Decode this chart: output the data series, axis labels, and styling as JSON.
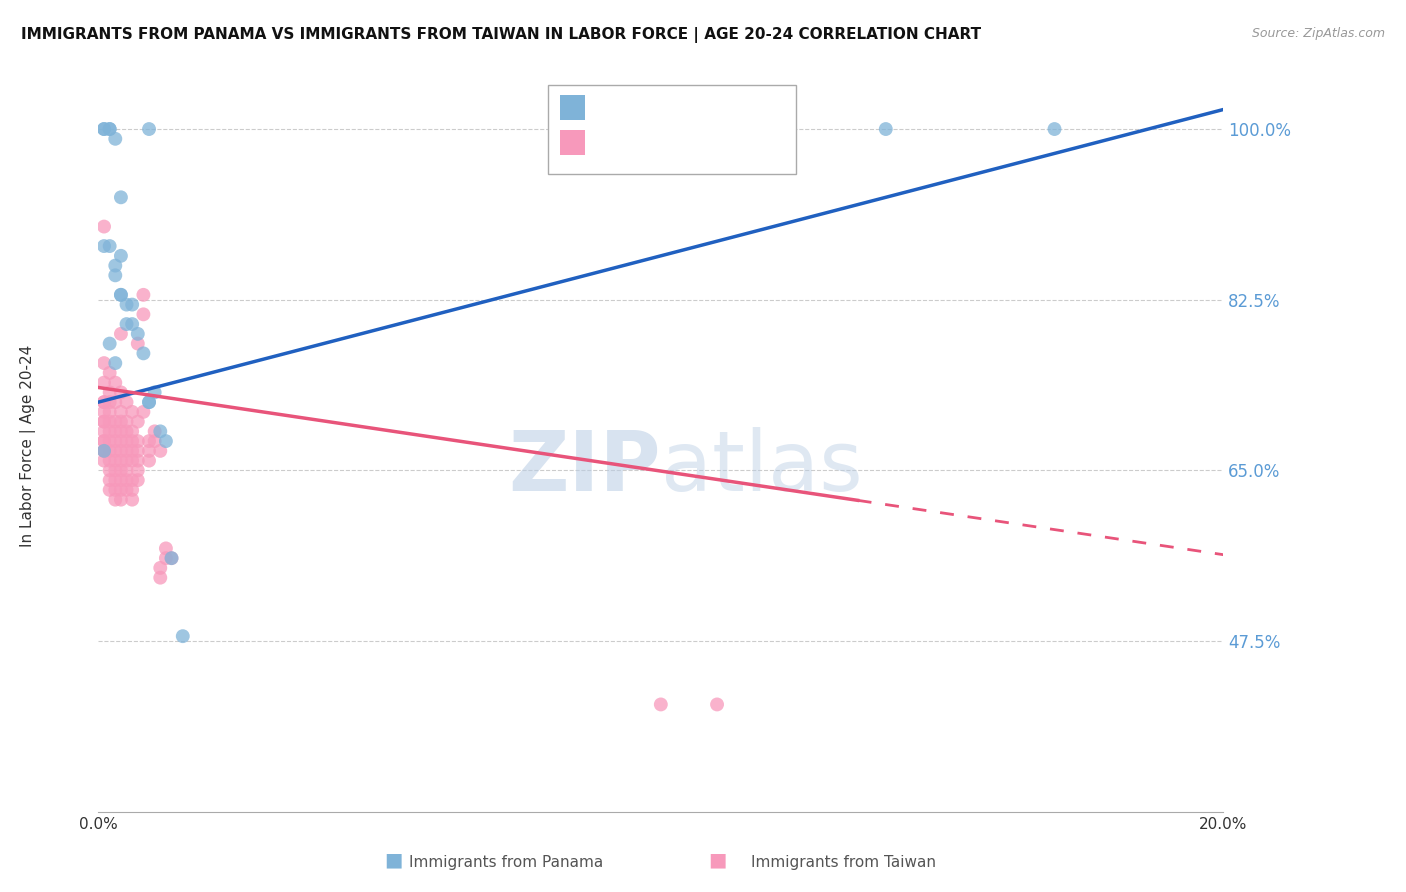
{
  "title": "IMMIGRANTS FROM PANAMA VS IMMIGRANTS FROM TAIWAN IN LABOR FORCE | AGE 20-24 CORRELATION CHART",
  "source": "Source: ZipAtlas.com",
  "ylabel": "In Labor Force | Age 20-24",
  "ytick_labels": [
    "100.0%",
    "82.5%",
    "65.0%",
    "47.5%"
  ],
  "ytick_values": [
    1.0,
    0.825,
    0.65,
    0.475
  ],
  "xmin": 0.0,
  "xmax": 0.2,
  "ymin": 0.3,
  "ymax": 1.05,
  "legend_label_panama": "Immigrants from Panama",
  "legend_label_taiwan": "Immigrants from Taiwan",
  "color_panama": "#7fb3d8",
  "color_taiwan": "#f799bb",
  "color_line_panama": "#2060c0",
  "color_line_taiwan": "#e8547a",
  "color_yticks": "#5b9bd5",
  "watermark_zip": "ZIP",
  "watermark_atlas": "atlas",
  "panama_points": [
    [
      0.001,
      1.0
    ],
    [
      0.001,
      1.0
    ],
    [
      0.002,
      1.0
    ],
    [
      0.002,
      1.0
    ],
    [
      0.003,
      0.99
    ],
    [
      0.004,
      0.87
    ],
    [
      0.004,
      0.83
    ],
    [
      0.004,
      0.83
    ],
    [
      0.005,
      0.82
    ],
    [
      0.005,
      0.8
    ],
    [
      0.006,
      0.82
    ],
    [
      0.006,
      0.8
    ],
    [
      0.007,
      0.79
    ],
    [
      0.008,
      0.77
    ],
    [
      0.009,
      0.72
    ],
    [
      0.009,
      0.72
    ],
    [
      0.01,
      0.73
    ],
    [
      0.011,
      0.69
    ],
    [
      0.012,
      0.68
    ],
    [
      0.013,
      0.56
    ],
    [
      0.015,
      0.48
    ],
    [
      0.009,
      1.0
    ],
    [
      0.001,
      0.88
    ],
    [
      0.002,
      0.88
    ],
    [
      0.003,
      0.86
    ],
    [
      0.003,
      0.85
    ],
    [
      0.004,
      0.93
    ],
    [
      0.002,
      0.78
    ],
    [
      0.003,
      0.76
    ],
    [
      0.17,
      1.0
    ],
    [
      0.14,
      1.0
    ],
    [
      0.001,
      0.67
    ]
  ],
  "taiwan_points": [
    [
      0.001,
      0.76
    ],
    [
      0.001,
      0.74
    ],
    [
      0.001,
      0.72
    ],
    [
      0.001,
      0.71
    ],
    [
      0.001,
      0.7
    ],
    [
      0.001,
      0.7
    ],
    [
      0.001,
      0.69
    ],
    [
      0.001,
      0.68
    ],
    [
      0.001,
      0.68
    ],
    [
      0.001,
      0.67
    ],
    [
      0.001,
      0.67
    ],
    [
      0.001,
      0.66
    ],
    [
      0.001,
      0.72
    ],
    [
      0.001,
      0.9
    ],
    [
      0.002,
      0.75
    ],
    [
      0.002,
      0.73
    ],
    [
      0.002,
      0.72
    ],
    [
      0.002,
      0.71
    ],
    [
      0.002,
      0.7
    ],
    [
      0.002,
      0.69
    ],
    [
      0.002,
      0.68
    ],
    [
      0.002,
      0.67
    ],
    [
      0.002,
      0.66
    ],
    [
      0.002,
      0.65
    ],
    [
      0.002,
      0.64
    ],
    [
      0.002,
      0.63
    ],
    [
      0.003,
      0.74
    ],
    [
      0.003,
      0.72
    ],
    [
      0.003,
      0.7
    ],
    [
      0.003,
      0.69
    ],
    [
      0.003,
      0.68
    ],
    [
      0.003,
      0.67
    ],
    [
      0.003,
      0.66
    ],
    [
      0.003,
      0.65
    ],
    [
      0.003,
      0.64
    ],
    [
      0.003,
      0.63
    ],
    [
      0.003,
      0.62
    ],
    [
      0.004,
      0.73
    ],
    [
      0.004,
      0.71
    ],
    [
      0.004,
      0.7
    ],
    [
      0.004,
      0.69
    ],
    [
      0.004,
      0.68
    ],
    [
      0.004,
      0.67
    ],
    [
      0.004,
      0.66
    ],
    [
      0.004,
      0.65
    ],
    [
      0.004,
      0.64
    ],
    [
      0.004,
      0.63
    ],
    [
      0.004,
      0.62
    ],
    [
      0.004,
      0.79
    ],
    [
      0.005,
      0.72
    ],
    [
      0.005,
      0.7
    ],
    [
      0.005,
      0.69
    ],
    [
      0.005,
      0.68
    ],
    [
      0.005,
      0.67
    ],
    [
      0.005,
      0.66
    ],
    [
      0.005,
      0.65
    ],
    [
      0.005,
      0.64
    ],
    [
      0.005,
      0.63
    ],
    [
      0.006,
      0.71
    ],
    [
      0.006,
      0.69
    ],
    [
      0.006,
      0.68
    ],
    [
      0.006,
      0.67
    ],
    [
      0.006,
      0.66
    ],
    [
      0.006,
      0.64
    ],
    [
      0.006,
      0.63
    ],
    [
      0.006,
      0.62
    ],
    [
      0.007,
      0.7
    ],
    [
      0.007,
      0.68
    ],
    [
      0.007,
      0.67
    ],
    [
      0.007,
      0.66
    ],
    [
      0.007,
      0.65
    ],
    [
      0.007,
      0.64
    ],
    [
      0.008,
      0.83
    ],
    [
      0.008,
      0.81
    ],
    [
      0.009,
      0.68
    ],
    [
      0.009,
      0.67
    ],
    [
      0.009,
      0.66
    ],
    [
      0.01,
      0.69
    ],
    [
      0.01,
      0.68
    ],
    [
      0.011,
      0.67
    ],
    [
      0.011,
      0.55
    ],
    [
      0.011,
      0.54
    ],
    [
      0.012,
      0.57
    ],
    [
      0.012,
      0.56
    ],
    [
      0.013,
      0.56
    ],
    [
      0.1,
      0.41
    ],
    [
      0.11,
      0.41
    ],
    [
      0.007,
      0.78
    ],
    [
      0.008,
      0.71
    ]
  ]
}
